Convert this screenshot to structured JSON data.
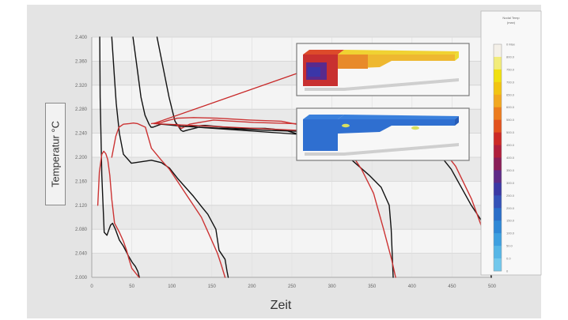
{
  "chart_data": {
    "type": "line",
    "xlabel": "Zeit",
    "ylabel": "Temperatur °C",
    "xlim": [
      0,
      1000
    ],
    "ylim": [
      2000,
      2400
    ],
    "x_ticks": [
      "0",
      "50",
      "100",
      "150",
      "200",
      "250",
      "300",
      "350",
      "400",
      "450",
      "500"
    ],
    "y_ticks": [
      "2.000",
      "2.040",
      "2.080",
      "2.120",
      "2.160",
      "2.200",
      "2.240",
      "2.280",
      "2.320",
      "2.360",
      "2.400"
    ],
    "grid": true,
    "series": [
      {
        "color": "#111111",
        "x": [
          20,
          21,
          25,
          31,
          38,
          42,
          47,
          52,
          59,
          69,
          79,
          92,
          101,
          109,
          115,
          119
        ],
        "y": [
          2400,
          2300,
          2170,
          2075,
          2070,
          2078,
          2087,
          2090,
          2080,
          2062,
          2052,
          2035,
          2025,
          2018,
          2010,
          2000
        ]
      },
      {
        "color": "#111111",
        "x": [
          50,
          56,
          61,
          69,
          79,
          99,
          119,
          149,
          174,
          194,
          214,
          234,
          254,
          274,
          290,
          310,
          318,
          333,
          338,
          341
        ],
        "y": [
          2400,
          2340,
          2290,
          2240,
          2205,
          2190,
          2192,
          2195,
          2191,
          2182,
          2165,
          2150,
          2135,
          2118,
          2105,
          2080,
          2045,
          2030,
          2010,
          2000
        ]
      },
      {
        "color": "#111111",
        "x": [
          103,
          113,
          123,
          133,
          143,
          148,
          153,
          173,
          193,
          233,
          283,
          333,
          383,
          433,
          483,
          533,
          583,
          633,
          693,
          723,
          743,
          748,
          753
        ],
        "y": [
          2400,
          2350,
          2300,
          2270,
          2255,
          2250,
          2250,
          2255,
          2254,
          2251,
          2253,
          2250,
          2248,
          2248,
          2245,
          2235,
          2225,
          2205,
          2170,
          2150,
          2120,
          2080,
          2000
        ]
      },
      {
        "color": "#111111",
        "x": [
          163,
          178,
          193,
          208,
          223,
          228,
          238,
          268,
          328,
          428,
          528,
          628,
          728,
          828,
          868,
          898,
          948,
          988,
          998
        ],
        "y": [
          2400,
          2350,
          2300,
          2260,
          2245,
          2243,
          2245,
          2250,
          2248,
          2245,
          2243,
          2240,
          2225,
          2215,
          2205,
          2180,
          2120,
          2080,
          2000
        ]
      },
      {
        "color": "#cc3333",
        "x": [
          15,
          19,
          25,
          30,
          35,
          40,
          45,
          50,
          57,
          69,
          79,
          87,
          93,
          100,
          112,
          118
        ],
        "y": [
          2120,
          2175,
          2205,
          2210,
          2206,
          2196,
          2170,
          2130,
          2090,
          2075,
          2060,
          2045,
          2030,
          2015,
          2005,
          2000
        ]
      },
      {
        "color": "#cc3333",
        "x": [
          50,
          60,
          68,
          79,
          94,
          104,
          114,
          134,
          149,
          174,
          194,
          214,
          234,
          254,
          274,
          294,
          314,
          324,
          333
        ],
        "y": [
          2200,
          2235,
          2250,
          2255,
          2256,
          2257,
          2256,
          2250,
          2215,
          2195,
          2180,
          2160,
          2140,
          2120,
          2100,
          2070,
          2040,
          2020,
          2000
        ]
      },
      {
        "color": "#cc3333",
        "x": [
          149,
          174,
          194,
          214,
          254,
          314,
          394,
          474,
          534,
          584,
          614,
          644,
          674,
          704,
          729,
          749,
          759
        ],
        "y": [
          2256,
          2258,
          2262,
          2265,
          2266,
          2265,
          2262,
          2260,
          2252,
          2245,
          2230,
          2210,
          2180,
          2140,
          2080,
          2030,
          2000
        ]
      },
      {
        "color": "#cc3333",
        "x": [
          209,
          224,
          244,
          304,
          404,
          504,
          604,
          704,
          784,
          834,
          874,
          909,
          949,
          979,
          998
        ],
        "y": [
          2255,
          2248,
          2255,
          2262,
          2258,
          2256,
          2255,
          2250,
          2245,
          2235,
          2215,
          2185,
          2130,
          2075,
          2040
        ]
      }
    ],
    "colorbar": {
      "title": "Nodal Temp",
      "subtitle": "(max)",
      "labels": [
        "0 Max",
        "800.0",
        "750.0",
        "700.0",
        "650.0",
        "600.0",
        "550.0",
        "500.0",
        "450.0",
        "400.0",
        "350.0",
        "300.0",
        "250.0",
        "200.0",
        "150.0",
        "100.0",
        "50.0",
        "0.0",
        "0"
      ],
      "colors": [
        "#f4f0e8",
        "#f2ec7a",
        "#f0e010",
        "#f2c412",
        "#f2a820",
        "#ec7c1e",
        "#e2521e",
        "#cc2a26",
        "#b01f3c",
        "#8a1f58",
        "#5e2a86",
        "#3a38a4",
        "#3452b8",
        "#2a6ec8",
        "#2f88d6",
        "#3ea0e0",
        "#56b6e6",
        "#72c8ec"
      ]
    },
    "insets": [
      {
        "state": "hot",
        "colors": [
          "#c83030",
          "#dd4a2a",
          "#e88a2a",
          "#eeb830",
          "#f0d232",
          "#ecdc34",
          "#5a2a8c",
          "#3a36a8"
        ]
      },
      {
        "state": "cool",
        "colors": [
          "#2f6fd0",
          "#3a80dc",
          "#265cb8",
          "#d8e060"
        ]
      }
    ]
  }
}
